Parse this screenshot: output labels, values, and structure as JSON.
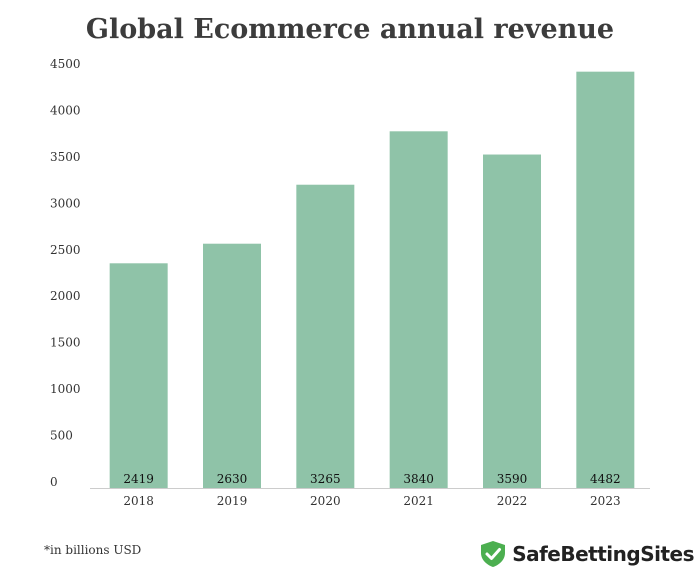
{
  "title": "Global Ecommerce annual revenue",
  "footnote": "*in billions USD",
  "brand": {
    "name": "SafeBettingSites",
    "icon": "shield-check-icon",
    "color": "#4caf50"
  },
  "colors": {
    "bar": "#8fc3a8",
    "axis": "#cccccc",
    "text": "#333333"
  },
  "chart_data": {
    "type": "bar",
    "title": "Global Ecommerce annual revenue",
    "categories": [
      "2018",
      "2019",
      "2020",
      "2021",
      "2022",
      "2023"
    ],
    "values": [
      2419,
      2630,
      3265,
      3840,
      3590,
      4482
    ],
    "data_labels": [
      "2419",
      "2630",
      "3265",
      "3840",
      "3590",
      "4482"
    ],
    "yticks": [
      "0",
      "500",
      "1000",
      "1500",
      "2000",
      "2500",
      "3000",
      "3500",
      "4000",
      "4500"
    ],
    "ylim": [
      0,
      4500
    ],
    "xlabel": "",
    "ylabel": "",
    "grid": false,
    "legend": "none"
  }
}
